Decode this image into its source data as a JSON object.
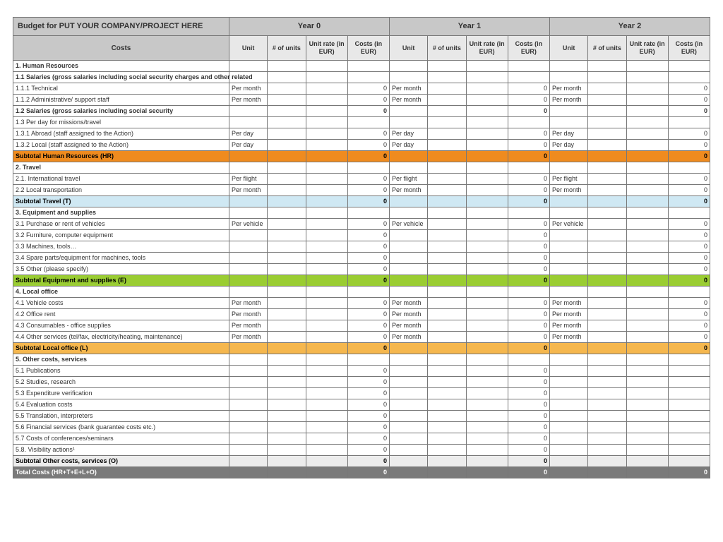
{
  "title": "Budget for PUT YOUR COMPANY/PROJECT HERE",
  "years": [
    "Year 0",
    "Year 1",
    "Year 2"
  ],
  "costs_header": "Costs",
  "sub_headers": [
    "Unit",
    "# of units",
    "Unit rate (in EUR)",
    "Costs (in EUR)"
  ],
  "colors": {
    "header_bg": "#c8c8c8",
    "subheader_bg": "#e8e8e8",
    "subtotal_hr": "#ef8b1f",
    "subtotal_travel": "#cfe8f3",
    "subtotal_equip": "#9acd32",
    "subtotal_office": "#f5b74e",
    "subtotal_other": "#ececec",
    "total": "#7a7a7a",
    "border": "#777777"
  },
  "rows": [
    {
      "t": "section",
      "label": "1. Human Resources"
    },
    {
      "t": "section",
      "label": "1.1 Salaries (gross salaries including social security charges and other related"
    },
    {
      "t": "line",
      "label": "  1.1.1 Technical",
      "u0": "Per month",
      "c0": "0",
      "u1": "Per month",
      "c1": "0",
      "u2": "Per month",
      "c2": "0"
    },
    {
      "t": "line",
      "label": "  1.1.2 Administrative/ support staff",
      "u0": "Per month",
      "c0": "0",
      "u1": "Per month",
      "c1": "0",
      "u2": "Per month",
      "c2": "0"
    },
    {
      "t": "section",
      "label": "1.2 Salaries (gross salaries including social security",
      "c0": "0",
      "c1": "0",
      "c2": "0"
    },
    {
      "t": "line",
      "label": "1.3 Per day for missions/travel"
    },
    {
      "t": "line",
      "label": "  1.3.1 Abroad (staff assigned to the Action)",
      "u0": "Per day",
      "c0": "0",
      "u1": "Per day",
      "c1": "0",
      "u2": "Per day",
      "c2": "0"
    },
    {
      "t": "line",
      "label": "  1.3.2 Local (staff assigned to the Action)",
      "u0": "Per day",
      "c0": "0",
      "u1": "Per day",
      "c1": "0",
      "u2": "Per day",
      "c2": "0"
    },
    {
      "t": "sub",
      "cls": "sub-orange",
      "label": "Subtotal Human Resources (HR)",
      "c0": "0",
      "c1": "0",
      "c2": "0"
    },
    {
      "t": "section",
      "label": "2. Travel"
    },
    {
      "t": "line",
      "label": "2.1. International travel",
      "u0": "Per flight",
      "c0": "0",
      "u1": "Per flight",
      "c1": "0",
      "u2": "Per flight",
      "c2": "0"
    },
    {
      "t": "line",
      "label": "2.2 Local transportation",
      "u0": "Per month",
      "c0": "0",
      "u1": "Per month",
      "c1": "0",
      "u2": "Per month",
      "c2": "0"
    },
    {
      "t": "sub",
      "cls": "sub-blue",
      "label": "Subtotal Travel (T)",
      "c0": "0",
      "c1": "0",
      "c2": "0"
    },
    {
      "t": "section",
      "label": "3. Equipment and supplies"
    },
    {
      "t": "line",
      "label": "3.1 Purchase or rent of vehicles",
      "u0": "Per vehicle",
      "c0": "0",
      "u1": "Per vehicle",
      "c1": "0",
      "u2": "Per vehicle",
      "c2": "0"
    },
    {
      "t": "line",
      "label": "3.2 Furniture, computer equipment",
      "c0": "0",
      "c1": "0",
      "c2": "0"
    },
    {
      "t": "line",
      "label": "3.3 Machines, tools…",
      "c0": "0",
      "c1": "0",
      "c2": "0"
    },
    {
      "t": "line",
      "label": "3.4 Spare parts/equipment for machines, tools",
      "c0": "0",
      "c1": "0",
      "c2": "0"
    },
    {
      "t": "line",
      "label": "3.5 Other (please specify)",
      "c0": "0",
      "c1": "0",
      "c2": "0"
    },
    {
      "t": "sub",
      "cls": "sub-green",
      "label": "Subtotal Equipment and supplies (E)",
      "c0": "0",
      "c1": "0",
      "c2": "0"
    },
    {
      "t": "section",
      "label": "4. Local office"
    },
    {
      "t": "line",
      "label": "4.1 Vehicle costs",
      "u0": "Per month",
      "c0": "0",
      "u1": "Per month",
      "c1": "0",
      "u2": "Per month",
      "c2": "0"
    },
    {
      "t": "line",
      "label": "4.2 Office rent",
      "u0": "Per month",
      "c0": "0",
      "u1": "Per month",
      "c1": "0",
      "u2": "Per month",
      "c2": "0"
    },
    {
      "t": "line",
      "label": "4.3 Consumables - office supplies",
      "u0": "Per month",
      "c0": "0",
      "u1": "Per month",
      "c1": "0",
      "u2": "Per month",
      "c2": "0"
    },
    {
      "t": "line",
      "label": "4.4 Other services (tel/fax, electricity/heating, maintenance)",
      "u0": "Per month",
      "c0": "0",
      "u1": "Per month",
      "c1": "0",
      "u2": "Per month",
      "c2": "0"
    },
    {
      "t": "sub",
      "cls": "sub-amber",
      "label": "Subtotal Local office (L)",
      "c0": "0",
      "c1": "0",
      "c2": "0"
    },
    {
      "t": "section",
      "label": "5. Other costs, services"
    },
    {
      "t": "line",
      "label": "5.1 Publications",
      "c0": "0",
      "c1": "0"
    },
    {
      "t": "line",
      "label": "5.2 Studies, research",
      "c0": "0",
      "c1": "0"
    },
    {
      "t": "line",
      "label": "5.3 Expenditure verification",
      "c0": "0",
      "c1": "0"
    },
    {
      "t": "line",
      "label": "5.4 Evaluation costs",
      "c0": "0",
      "c1": "0"
    },
    {
      "t": "line",
      "label": "5.5 Translation, interpreters",
      "c0": "0",
      "c1": "0"
    },
    {
      "t": "line",
      "label": "5.6 Financial services (bank guarantee costs etc.)",
      "c0": "0",
      "c1": "0"
    },
    {
      "t": "line",
      "label": "5.7 Costs of conferences/seminars",
      "c0": "0",
      "c1": "0"
    },
    {
      "t": "line",
      "label": "5.8. Visibility actions¹",
      "c0": "0",
      "c1": "0"
    },
    {
      "t": "sub",
      "cls": "sub-grey",
      "label": "Subtotal Other costs, services (O)",
      "c0": "0",
      "c1": "0"
    },
    {
      "t": "sub",
      "cls": "total",
      "label": "Total Costs (HR+T+E+L+O)",
      "c0": "0",
      "c1": "0",
      "c2": "0"
    }
  ]
}
